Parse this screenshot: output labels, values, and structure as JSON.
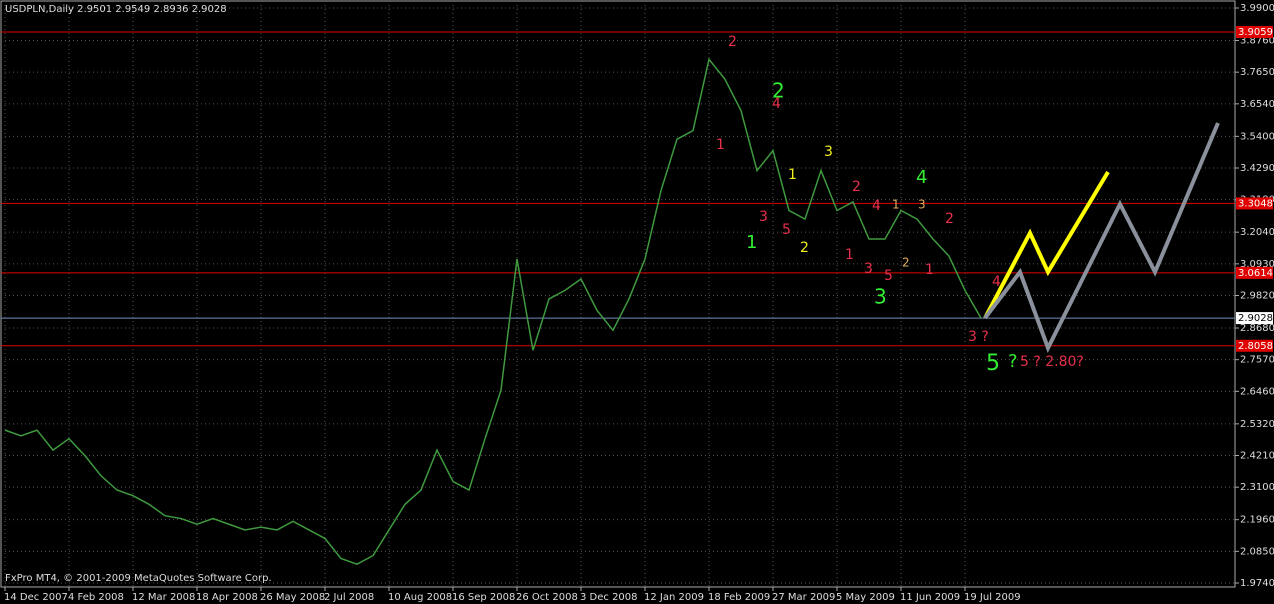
{
  "chart_data": {
    "type": "line",
    "title": "USDPLN,Daily  2.9501 2.9549 2.8936 2.9028",
    "footer": "FxPro MT4, © 2001-2009 MetaQuotes Software Corp.",
    "categories": [
      "14 Dec 2007",
      null,
      null,
      null,
      "4 Feb 2008",
      null,
      null,
      null,
      "12 Mar 2008",
      null,
      null,
      null,
      "18 Apr 2008",
      null,
      null,
      null,
      "26 May 2008",
      null,
      null,
      null,
      "2 Jul 2008",
      null,
      null,
      null,
      "10 Aug 2008",
      null,
      null,
      null,
      "16 Sep 2008",
      null,
      null,
      null,
      "26 Oct 2008",
      null,
      null,
      null,
      "3 Dec 2008",
      null,
      null,
      null,
      "12 Jan 2009",
      null,
      null,
      null,
      "18 Feb 2009",
      null,
      null,
      null,
      "27 Mar 2009",
      null,
      null,
      null,
      "5 May 2009",
      null,
      null,
      null,
      "11 Jun 2009",
      null,
      null,
      null,
      "19 Jul 2009",
      null
    ],
    "series": [
      {
        "name": "USDPLN",
        "color": "#3f9a3f",
        "values": [
          2.51,
          2.49,
          2.51,
          2.44,
          2.48,
          2.42,
          2.35,
          2.3,
          2.28,
          2.25,
          2.21,
          2.2,
          2.18,
          2.2,
          2.18,
          2.16,
          2.17,
          2.16,
          2.19,
          2.16,
          2.13,
          2.06,
          2.04,
          2.07,
          2.16,
          2.25,
          2.3,
          2.44,
          2.33,
          2.3,
          2.48,
          2.65,
          3.11,
          2.79,
          2.97,
          3.0,
          3.04,
          2.93,
          2.86,
          2.97,
          3.11,
          3.35,
          3.53,
          3.56,
          3.81,
          3.74,
          3.63,
          3.42,
          3.49,
          3.28,
          3.25,
          3.42,
          3.28,
          3.31,
          3.18,
          3.18,
          3.28,
          3.25,
          3.18,
          3.12,
          3.0,
          2.9028
        ]
      }
    ],
    "ylim": [
      1.974,
      3.99
    ],
    "yticks": [
      {
        "value": 3.99,
        "label": "3.9900"
      },
      {
        "value": 3.876,
        "label": "3.8760"
      },
      {
        "value": 3.765,
        "label": "3.7650"
      },
      {
        "value": 3.654,
        "label": "3.6540"
      },
      {
        "value": 3.54,
        "label": "3.5400"
      },
      {
        "value": 3.429,
        "label": "3.4290"
      },
      {
        "value": 3.318,
        "label": "3.3180"
      },
      {
        "value": 3.204,
        "label": "3.2040"
      },
      {
        "value": 3.093,
        "label": "3.0930"
      },
      {
        "value": 2.982,
        "label": "2.9820"
      },
      {
        "value": 2.868,
        "label": "2.8680"
      },
      {
        "value": 2.757,
        "label": "2.7570"
      },
      {
        "value": 2.646,
        "label": "2.6460"
      },
      {
        "value": 2.532,
        "label": "2.5320"
      },
      {
        "value": 2.421,
        "label": "2.4210"
      },
      {
        "value": 2.31,
        "label": "2.3100"
      },
      {
        "value": 2.196,
        "label": "2.1960"
      },
      {
        "value": 2.085,
        "label": "2.0850"
      },
      {
        "value": 1.974,
        "label": "1.9740"
      }
    ],
    "grid": true,
    "levels": [
      {
        "value": 3.9059,
        "label": "3.9059",
        "color": "#e00000"
      },
      {
        "value": 3.3048,
        "label": "3.3048",
        "color": "#e00000"
      },
      {
        "value": 3.0614,
        "label": "3.0614",
        "color": "#e00000"
      },
      {
        "value": 2.9028,
        "label": "2.9028",
        "color": "#6f8fbf"
      },
      {
        "value": 2.8058,
        "label": "2.8058",
        "color": "#e00000"
      }
    ],
    "annotations": [
      {
        "text": "2",
        "color": "#e8304a"
      },
      {
        "text": "1",
        "color": "#e8304a"
      },
      {
        "text": "2",
        "color": "#33ee33"
      },
      {
        "text": "4",
        "color": "#e8304a"
      },
      {
        "text": "3",
        "color": "#f0f020"
      },
      {
        "text": "1",
        "color": "#f0f020"
      },
      {
        "text": "3",
        "color": "#e8304a"
      },
      {
        "text": "5",
        "color": "#e8304a"
      },
      {
        "text": "1",
        "color": "#33ee33"
      },
      {
        "text": "2",
        "color": "#f0f020"
      },
      {
        "text": "2",
        "color": "#e8304a"
      },
      {
        "text": "4",
        "color": "#33ee33"
      },
      {
        "text": "4",
        "color": "#e8304a"
      },
      {
        "text": "1",
        "color": "#e0b060"
      },
      {
        "text": "3",
        "color": "#e0b060"
      },
      {
        "text": "2",
        "color": "#e8304a"
      },
      {
        "text": "1",
        "color": "#e8304a"
      },
      {
        "text": "3",
        "color": "#e8304a"
      },
      {
        "text": "5",
        "color": "#e8304a"
      },
      {
        "text": "2",
        "color": "#e0b060"
      },
      {
        "text": "1",
        "color": "#e8304a"
      },
      {
        "text": "3",
        "color": "#33ee33"
      },
      {
        "text": "4",
        "color": "#e8304a"
      },
      {
        "text": "3 ?",
        "color": "#e8304a"
      },
      {
        "text": "5",
        "color": "#33ee33"
      },
      {
        "text": "?",
        "color": "#33ee33"
      },
      {
        "text": "5 ? 2.80?",
        "color": "#e8304a"
      }
    ]
  }
}
